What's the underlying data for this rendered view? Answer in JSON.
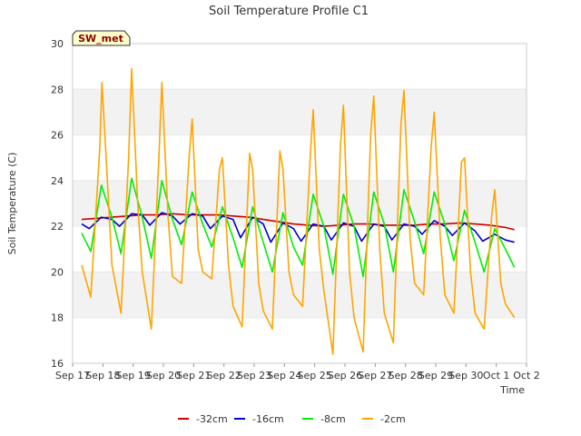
{
  "chart_data": {
    "type": "line",
    "title": "Soil Temperature Profile C1",
    "xlabel": "Time",
    "ylabel": "Soil Temperature (C)",
    "station_badge": "SW_met",
    "ylim": [
      16,
      30
    ],
    "yticks": [
      16,
      18,
      20,
      22,
      24,
      26,
      28,
      30
    ],
    "xlim": [
      0,
      15
    ],
    "xticks": [
      0,
      1,
      2,
      3,
      4,
      5,
      6,
      7,
      8,
      9,
      10,
      11,
      12,
      13,
      14,
      15
    ],
    "xtick_labels": [
      "Sep 17",
      "Sep 18",
      "Sep 19",
      "Sep 20",
      "Sep 21",
      "Sep 22",
      "Sep 23",
      "Sep 24",
      "Sep 25",
      "Sep 26",
      "Sep 27",
      "Sep 28",
      "Sep 29",
      "Sep 30",
      "Oct 1",
      "Oct 2"
    ],
    "grid": "horizontal-bands",
    "legend_position": "bottom",
    "colors": {
      "-32cm": "#cc0000",
      "-16cm": "#0000cc",
      "-8cm": "#00ee00",
      "-2cm": "#ffa500"
    },
    "series": [
      {
        "name": "-32cm",
        "x": [
          0.3,
          0.8,
          1.3,
          1.8,
          2.3,
          2.8,
          3.3,
          3.8,
          4.3,
          4.8,
          5.3,
          5.8,
          6.3,
          6.8,
          7.3,
          7.8,
          8.3,
          8.8,
          9.3,
          9.8,
          10.3,
          10.8,
          11.3,
          11.8,
          12.3,
          12.8,
          13.3,
          13.8,
          14.3,
          14.6
        ],
        "values": [
          22.3,
          22.35,
          22.4,
          22.45,
          22.5,
          22.5,
          22.55,
          22.5,
          22.5,
          22.5,
          22.45,
          22.4,
          22.3,
          22.2,
          22.1,
          22.05,
          22.0,
          22.05,
          22.1,
          22.1,
          22.05,
          22.05,
          22.05,
          22.1,
          22.1,
          22.15,
          22.1,
          22.05,
          21.95,
          21.85
        ]
      },
      {
        "name": "-16cm",
        "x": [
          0.3,
          0.55,
          0.95,
          1.3,
          1.55,
          1.95,
          2.3,
          2.55,
          2.95,
          3.3,
          3.55,
          3.95,
          4.3,
          4.55,
          4.95,
          5.3,
          5.55,
          5.95,
          6.3,
          6.55,
          6.95,
          7.3,
          7.55,
          7.95,
          8.3,
          8.55,
          8.95,
          9.3,
          9.55,
          9.95,
          10.3,
          10.55,
          10.95,
          11.3,
          11.55,
          11.95,
          12.3,
          12.55,
          12.95,
          13.3,
          13.55,
          13.95,
          14.3,
          14.6
        ],
        "values": [
          22.1,
          21.9,
          22.4,
          22.3,
          22.0,
          22.55,
          22.5,
          22.05,
          22.6,
          22.45,
          22.1,
          22.55,
          22.45,
          21.9,
          22.45,
          22.3,
          21.5,
          22.4,
          22.1,
          21.3,
          22.15,
          21.9,
          21.35,
          22.1,
          22.0,
          21.4,
          22.15,
          22.0,
          21.35,
          22.1,
          22.0,
          21.4,
          22.1,
          22.0,
          21.65,
          22.25,
          22.0,
          21.6,
          22.15,
          21.8,
          21.35,
          21.65,
          21.4,
          21.3
        ]
      },
      {
        "name": "-8cm",
        "x": [
          0.3,
          0.6,
          0.95,
          1.3,
          1.6,
          1.95,
          2.3,
          2.6,
          2.95,
          3.3,
          3.6,
          3.95,
          4.3,
          4.6,
          4.95,
          5.3,
          5.6,
          5.95,
          6.3,
          6.6,
          6.95,
          7.3,
          7.6,
          7.95,
          8.3,
          8.6,
          8.95,
          9.3,
          9.6,
          9.95,
          10.3,
          10.6,
          10.95,
          11.3,
          11.6,
          11.95,
          12.3,
          12.6,
          12.95,
          13.3,
          13.6,
          13.95,
          14.3,
          14.6
        ],
        "values": [
          21.7,
          20.9,
          23.8,
          22.4,
          20.8,
          24.1,
          22.4,
          20.6,
          24.0,
          22.3,
          21.2,
          23.5,
          22.1,
          21.1,
          22.85,
          21.5,
          20.2,
          22.85,
          21.3,
          20.0,
          22.6,
          21.1,
          20.3,
          23.4,
          22.0,
          19.9,
          23.4,
          22.0,
          19.8,
          23.5,
          22.1,
          20.0,
          23.6,
          22.2,
          20.8,
          23.5,
          22.1,
          20.5,
          22.7,
          21.3,
          20.0,
          21.9,
          21.0,
          20.2
        ]
      },
      {
        "name": "-2cm",
        "x": [
          0.3,
          0.6,
          0.9,
          0.97,
          1.15,
          1.3,
          1.6,
          1.85,
          1.95,
          2.15,
          2.3,
          2.6,
          2.85,
          2.95,
          3.15,
          3.3,
          3.6,
          3.85,
          3.95,
          4.15,
          4.3,
          4.6,
          4.85,
          4.95,
          5.15,
          5.3,
          5.6,
          5.85,
          5.95,
          6.15,
          6.3,
          6.6,
          6.85,
          6.95,
          7.15,
          7.3,
          7.6,
          7.85,
          7.95,
          8.15,
          8.3,
          8.6,
          8.85,
          8.95,
          9.15,
          9.3,
          9.6,
          9.85,
          9.95,
          10.15,
          10.3,
          10.6,
          10.85,
          10.95,
          11.15,
          11.3,
          11.6,
          11.85,
          11.95,
          12.15,
          12.3,
          12.6,
          12.85,
          12.95,
          13.15,
          13.3,
          13.6,
          13.85,
          13.95,
          14.15,
          14.3,
          14.6
        ],
        "values": [
          20.3,
          18.9,
          25.5,
          28.3,
          24.0,
          20.3,
          18.2,
          25.0,
          28.9,
          23.0,
          20.0,
          17.5,
          25.0,
          28.3,
          22.5,
          19.8,
          19.5,
          25.0,
          26.7,
          21.0,
          20.0,
          19.7,
          24.5,
          25.0,
          20.3,
          18.5,
          17.6,
          25.2,
          24.5,
          19.5,
          18.3,
          17.5,
          25.3,
          24.5,
          20.0,
          19.0,
          18.5,
          25.0,
          27.1,
          21.0,
          19.2,
          16.4,
          25.5,
          27.3,
          20.0,
          18.0,
          16.5,
          26.0,
          27.7,
          21.0,
          18.2,
          16.9,
          26.5,
          27.95,
          21.5,
          19.5,
          19.0,
          25.5,
          27.0,
          21.5,
          19.0,
          18.2,
          24.8,
          25.0,
          20.0,
          18.2,
          17.5,
          22.5,
          23.6,
          19.5,
          18.6,
          18.0
        ]
      }
    ]
  }
}
